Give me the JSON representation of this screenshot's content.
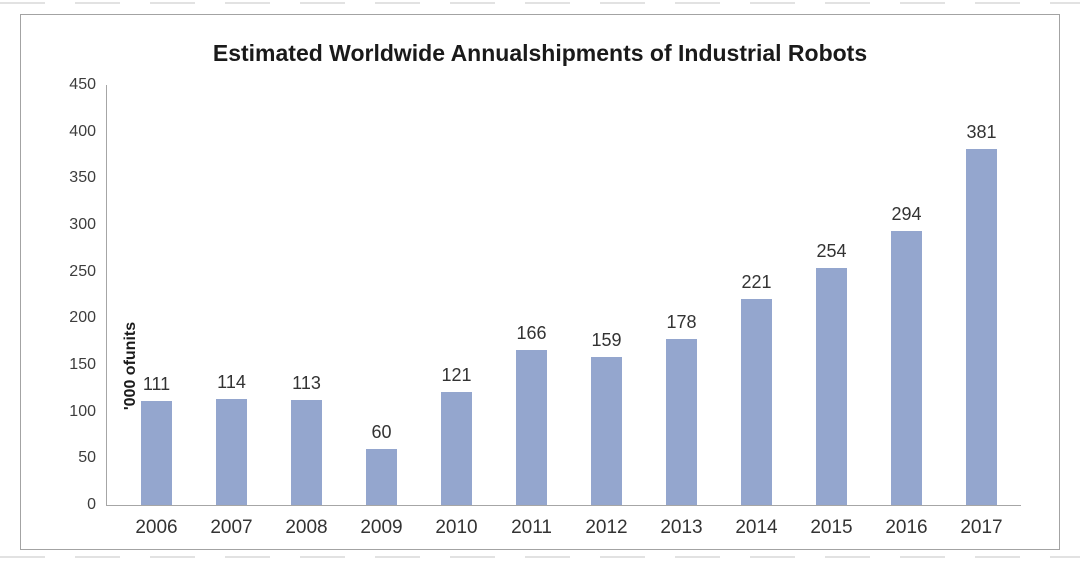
{
  "chart_data": {
    "type": "bar",
    "title": "Estimated Worldwide Annualshipments of Industrial Robots",
    "categories": [
      "2006",
      "2007",
      "2008",
      "2009",
      "2010",
      "2011",
      "2012",
      "2013",
      "2014",
      "2015",
      "2016",
      "2017"
    ],
    "values": [
      111,
      114,
      113,
      60,
      121,
      166,
      159,
      178,
      221,
      254,
      294,
      381
    ],
    "xlabel": "",
    "ylabel": "'000 ofunits",
    "ylim": [
      0,
      450
    ],
    "yticks": [
      0,
      50,
      100,
      150,
      200,
      250,
      300,
      350,
      400,
      450
    ],
    "grid": false,
    "legend_position": "none",
    "value_labels_visible": true,
    "colors": {
      "bar": "#94a6ce",
      "axis": "#a6a6a6",
      "tick_text": "#3d3d3d",
      "label_text": "#333333",
      "title_text": "#1a1a1a",
      "frame_border": "#a3a3a3",
      "background": "#ffffff"
    }
  }
}
